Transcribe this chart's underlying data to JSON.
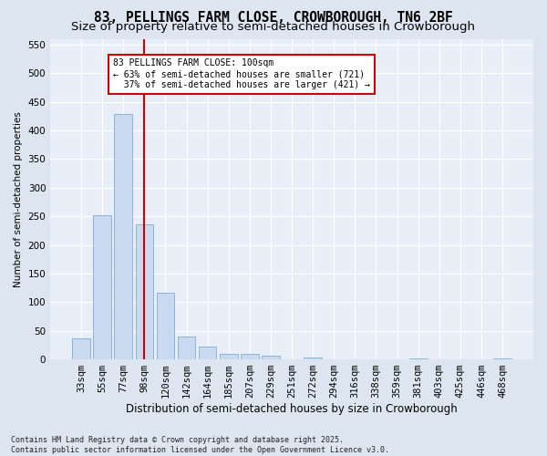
{
  "title": "83, PELLINGS FARM CLOSE, CROWBOROUGH, TN6 2BF",
  "subtitle": "Size of property relative to semi-detached houses in Crowborough",
  "xlabel": "Distribution of semi-detached houses by size in Crowborough",
  "ylabel": "Number of semi-detached properties",
  "categories": [
    "33sqm",
    "55sqm",
    "77sqm",
    "98sqm",
    "120sqm",
    "142sqm",
    "164sqm",
    "185sqm",
    "207sqm",
    "229sqm",
    "251sqm",
    "272sqm",
    "294sqm",
    "316sqm",
    "338sqm",
    "359sqm",
    "381sqm",
    "403sqm",
    "425sqm",
    "446sqm",
    "468sqm"
  ],
  "values": [
    37,
    251,
    428,
    236,
    116,
    40,
    22,
    10,
    9,
    6,
    0,
    3,
    0,
    0,
    0,
    0,
    2,
    0,
    0,
    0,
    2
  ],
  "bar_color": "#c9d9f0",
  "bar_edge_color": "#7eadd4",
  "vline_x_index": 3,
  "vline_color": "#cc0000",
  "annotation_text": "83 PELLINGS FARM CLOSE: 100sqm\n← 63% of semi-detached houses are smaller (721)\n  37% of semi-detached houses are larger (421) →",
  "annotation_box_color": "#ffffff",
  "annotation_box_edge_color": "#cc0000",
  "ylim": [
    0,
    560
  ],
  "yticks": [
    0,
    50,
    100,
    150,
    200,
    250,
    300,
    350,
    400,
    450,
    500,
    550
  ],
  "title_fontsize": 10.5,
  "subtitle_fontsize": 9.5,
  "footer_text": "Contains HM Land Registry data © Crown copyright and database right 2025.\nContains public sector information licensed under the Open Government Licence v3.0.",
  "bg_color": "#dde5f0",
  "plot_bg_color": "#e8eef8",
  "grid_color": "#ffffff",
  "annotation_fontsize": 7.0,
  "xlabel_fontsize": 8.5,
  "ylabel_fontsize": 7.5,
  "tick_fontsize": 7.5,
  "footer_fontsize": 6.0
}
